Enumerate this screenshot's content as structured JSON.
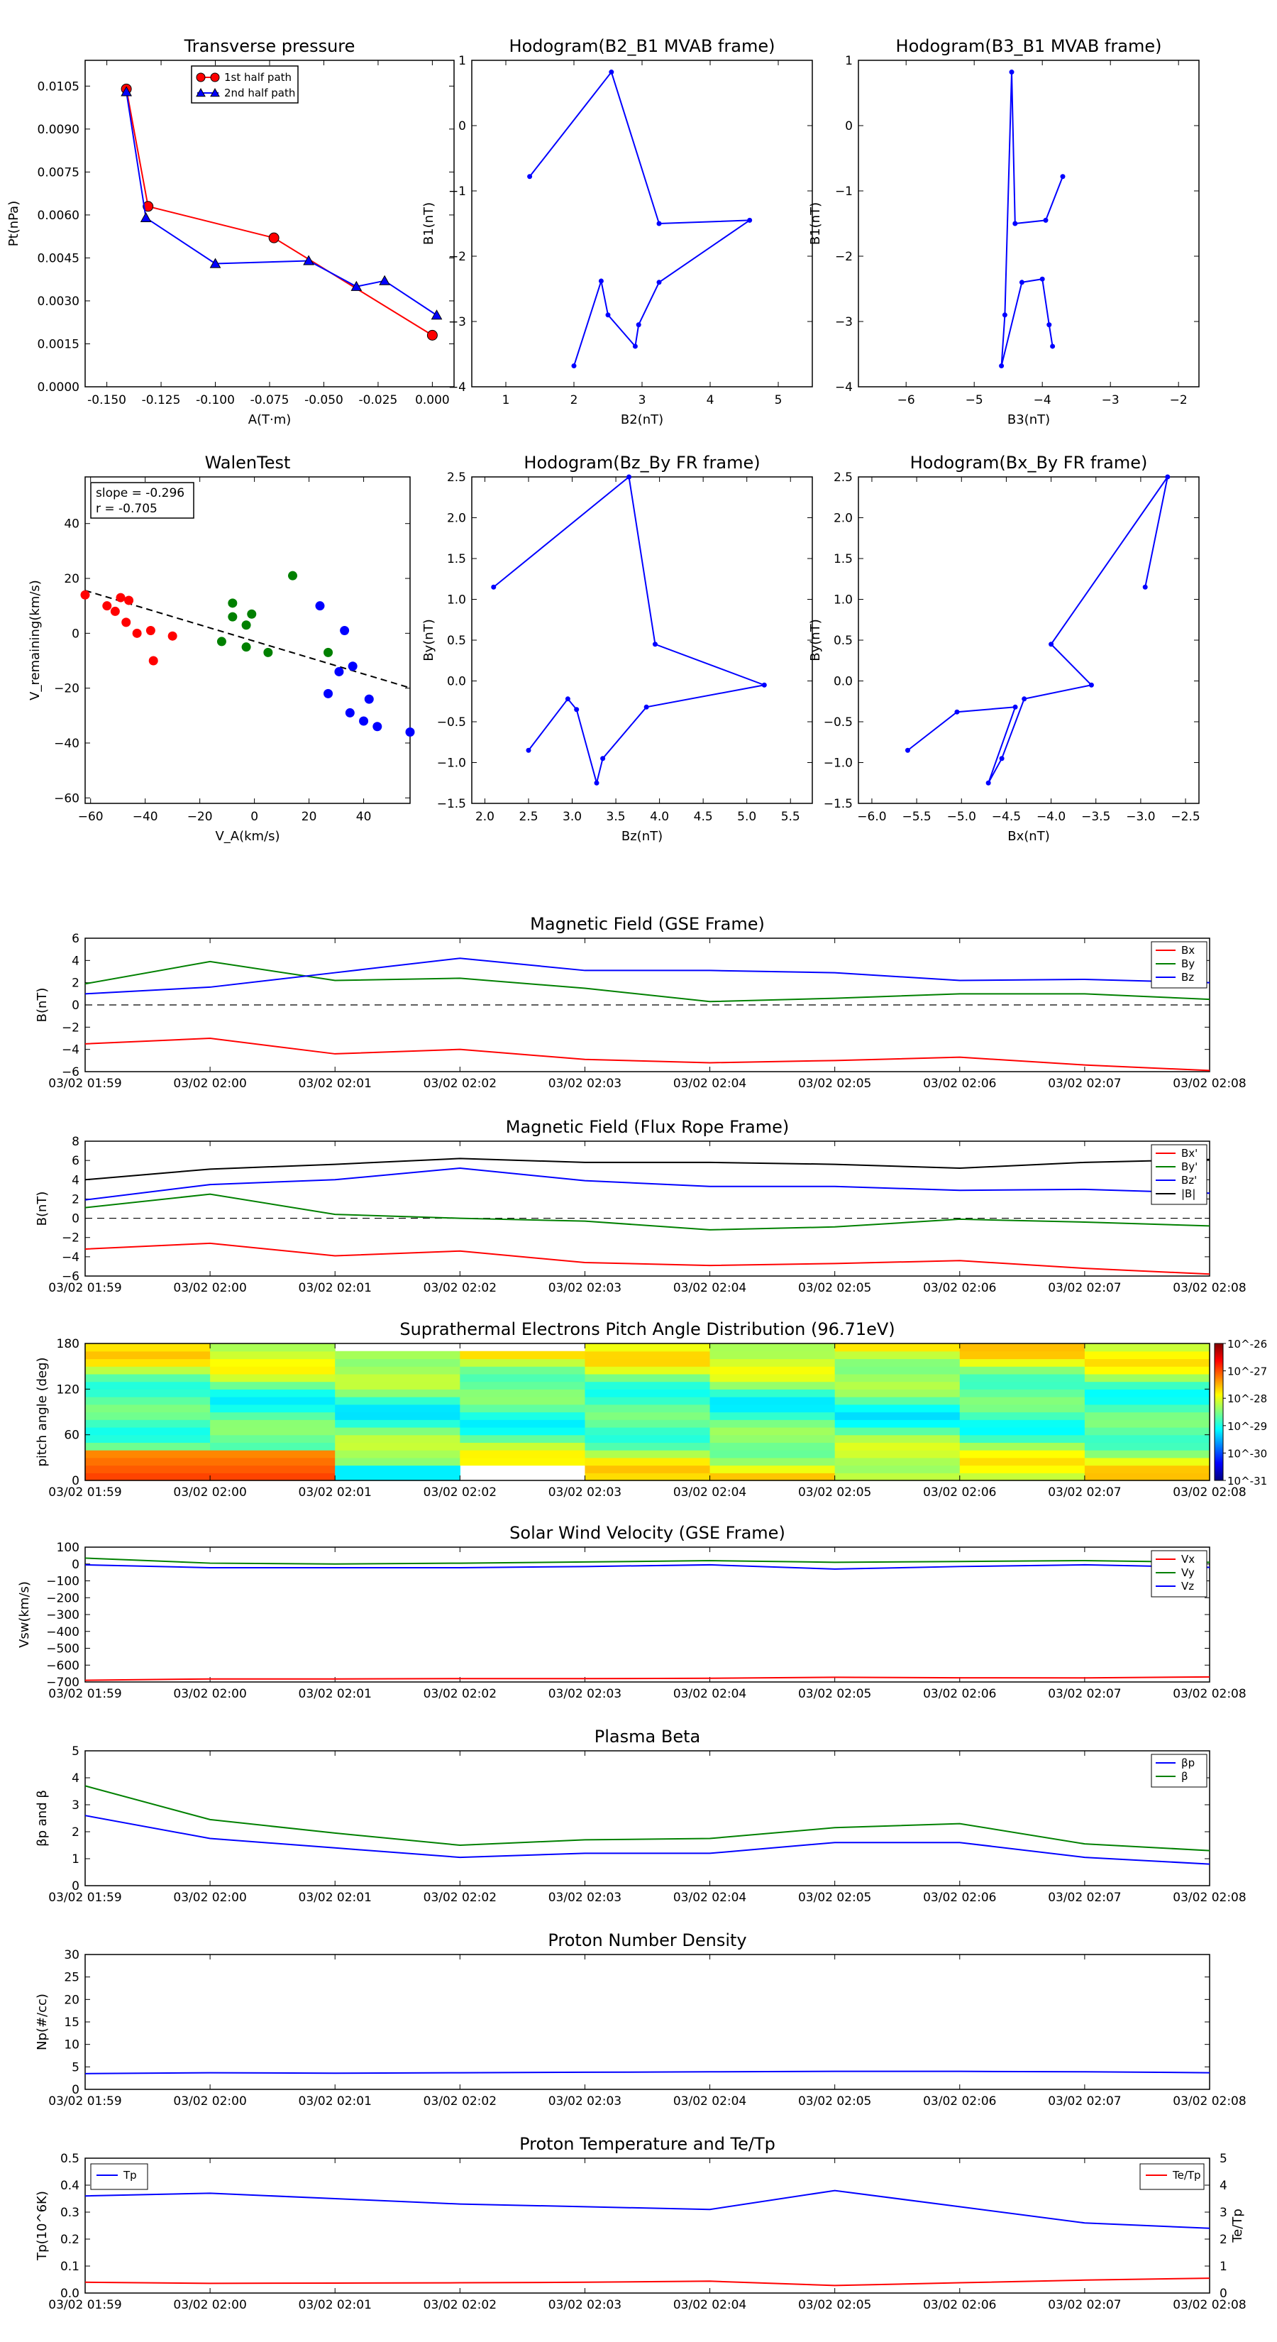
{
  "colors": {
    "blue": "#0000ff",
    "green": "#008000",
    "red": "#ff0000",
    "black": "#000000"
  },
  "chart_data": [
    {
      "id": "transverse-pressure",
      "type": "scatter",
      "title": "Transverse pressure",
      "xlabel": "A(T·m)",
      "ylabel": "Pt(nPa)",
      "xlim": [
        -0.16,
        0.01
      ],
      "ylim": [
        0.0,
        0.0114
      ],
      "xticks": [
        "-0.150",
        "-0.125",
        "-0.100",
        "-0.075",
        "-0.050",
        "-0.025",
        "0.000"
      ],
      "yticks": [
        "0.0000",
        "0.0015",
        "0.0030",
        "0.0045",
        "0.0060",
        "0.0075",
        "0.0090",
        "0.0105"
      ],
      "legend": "top-center",
      "series": [
        {
          "name": "1st half path",
          "color": "red",
          "marker": "circle",
          "x": [
            -0.141,
            -0.131,
            -0.073,
            0.0
          ],
          "y": [
            0.0104,
            0.0063,
            0.0052,
            0.0018
          ]
        },
        {
          "name": "2nd half path",
          "color": "blue",
          "marker": "triangle",
          "x": [
            -0.141,
            -0.132,
            -0.1,
            -0.057,
            -0.035,
            -0.022,
            0.002
          ],
          "y": [
            0.0103,
            0.0059,
            0.0043,
            0.0044,
            0.0035,
            0.0037,
            0.0025
          ]
        }
      ]
    },
    {
      "id": "hodogram-b2-b1",
      "type": "line",
      "title": "Hodogram(B2_B1 MVAB frame)",
      "xlabel": "B2(nT)",
      "ylabel": "B1(nT)",
      "xlim": [
        0.5,
        5.5
      ],
      "ylim": [
        -4,
        1
      ],
      "xticks": [
        "1",
        "2",
        "3",
        "4",
        "5"
      ],
      "yticks": [
        "1",
        "0",
        "−1",
        "−2",
        "−3",
        "−4"
      ],
      "series": [
        {
          "color": "blue",
          "x": [
            1.35,
            2.55,
            3.25,
            4.58,
            3.25,
            2.95,
            2.9,
            2.5,
            2.4,
            2.0
          ],
          "y": [
            -0.78,
            0.82,
            -1.5,
            -1.45,
            -2.4,
            -3.05,
            -3.38,
            -2.9,
            -2.38,
            -3.68
          ]
        }
      ]
    },
    {
      "id": "hodogram-b3-b1",
      "type": "line",
      "title": "Hodogram(B3_B1 MVAB frame)",
      "xlabel": "B3(nT)",
      "ylabel": "B1(nT)",
      "xlim": [
        -6.7,
        -1.7
      ],
      "ylim": [
        -4,
        1
      ],
      "xticks": [
        "−6",
        "−5",
        "−4",
        "−3",
        "−2"
      ],
      "yticks": [
        "1",
        "0",
        "−1",
        "−2",
        "−3",
        "−4"
      ],
      "series": [
        {
          "color": "blue",
          "x": [
            -3.7,
            -3.95,
            -4.4,
            -4.45,
            -4.55,
            -4.6,
            -4.3,
            -4.0,
            -3.9,
            -3.85
          ],
          "y": [
            -0.78,
            -1.45,
            -1.5,
            0.82,
            -2.9,
            -3.68,
            -2.4,
            -2.35,
            -3.05,
            -3.38
          ]
        }
      ]
    },
    {
      "id": "walen-test",
      "type": "scatter",
      "title": "WalenTest",
      "xlabel": "V_A(km/s)",
      "ylabel": "V_remaining(km/s)",
      "xlim": [
        -62,
        57
      ],
      "ylim": [
        -62,
        57
      ],
      "xticks": [
        "−60",
        "−40",
        "−20",
        "0",
        "20",
        "40"
      ],
      "yticks": [
        "40",
        "20",
        "0",
        "−20",
        "−40",
        "−60"
      ],
      "annotation": [
        "slope = -0.296",
        "r = -0.705"
      ],
      "fit": {
        "x": [
          -62,
          57
        ],
        "y": [
          15.6,
          -19.9
        ]
      },
      "series": [
        {
          "color": "red",
          "x": [
            -62,
            -54,
            -51,
            -49,
            -47,
            -46,
            -43,
            -38,
            -37,
            -30
          ],
          "y": [
            14,
            10,
            8,
            13,
            4,
            12,
            0,
            1,
            -10,
            -1
          ]
        },
        {
          "color": "green",
          "x": [
            -12,
            -8,
            -8,
            -3,
            -3,
            -1,
            5,
            14,
            27
          ],
          "y": [
            -3,
            11,
            6,
            3,
            -5,
            7,
            -7,
            21,
            -7
          ]
        },
        {
          "color": "blue",
          "x": [
            24,
            27,
            31,
            33,
            35,
            36,
            40,
            42,
            45,
            57
          ],
          "y": [
            10,
            -22,
            -14,
            1,
            -29,
            -12,
            -32,
            -24,
            -34,
            -36
          ]
        }
      ]
    },
    {
      "id": "hodogram-bz-by",
      "type": "line",
      "title": "Hodogram(Bz_By FR frame)",
      "xlabel": "Bz(nT)",
      "ylabel": "By(nT)",
      "xlim": [
        1.85,
        5.75
      ],
      "ylim": [
        -1.5,
        2.5
      ],
      "xticks": [
        "2.0",
        "2.5",
        "3.0",
        "3.5",
        "4.0",
        "4.5",
        "5.0",
        "5.5"
      ],
      "yticks": [
        "2.5",
        "2.0",
        "1.5",
        "1.0",
        "0.5",
        "0.0",
        "−0.5",
        "−1.0",
        "−1.5"
      ],
      "series": [
        {
          "color": "blue",
          "x": [
            2.1,
            3.65,
            3.95,
            5.2,
            3.85,
            3.35,
            3.28,
            3.05,
            2.95,
            2.5
          ],
          "y": [
            1.15,
            2.5,
            0.45,
            -0.05,
            -0.32,
            -0.95,
            -1.25,
            -0.35,
            -0.22,
            -0.85
          ]
        }
      ]
    },
    {
      "id": "hodogram-bx-by",
      "type": "line",
      "title": "Hodogram(Bx_By FR frame)",
      "xlabel": "Bx(nT)",
      "ylabel": "By(nT)",
      "xlim": [
        -6.15,
        -2.35
      ],
      "ylim": [
        -1.5,
        2.5
      ],
      "xticks": [
        "−6.0",
        "−5.5",
        "−5.0",
        "−4.5",
        "−4.0",
        "−3.5",
        "−3.0",
        "−2.5"
      ],
      "yticks": [
        "2.5",
        "2.0",
        "1.5",
        "1.0",
        "0.5",
        "0.0",
        "−0.5",
        "−1.0",
        "−1.5"
      ],
      "series": [
        {
          "color": "blue",
          "x": [
            -2.95,
            -2.7,
            -4.0,
            -3.55,
            -4.3,
            -4.55,
            -4.7,
            -4.4,
            -5.05,
            -5.6
          ],
          "y": [
            1.15,
            2.5,
            0.45,
            -0.05,
            -0.22,
            -0.95,
            -1.25,
            -0.32,
            -0.38,
            -0.85
          ]
        }
      ]
    },
    {
      "id": "magnetic-field-gse",
      "type": "line",
      "title": "Magnetic Field (GSE Frame)",
      "ylabel": "B(nT)",
      "ylim": [
        -6,
        6
      ],
      "yticks": [
        "6",
        "4",
        "2",
        "0",
        "−2",
        "−4",
        "−6"
      ],
      "zero_line": true,
      "legend": "top-right",
      "series": [
        {
          "name": "Bx",
          "color": "red",
          "y": [
            -3.5,
            -3.0,
            -4.4,
            -4.0,
            -4.9,
            -5.2,
            -5.0,
            -4.7,
            -5.4,
            -5.9
          ]
        },
        {
          "name": "By",
          "color": "green",
          "y": [
            1.9,
            3.9,
            2.2,
            2.4,
            1.5,
            0.3,
            0.6,
            1.0,
            1.0,
            0.5
          ]
        },
        {
          "name": "Bz",
          "color": "blue",
          "y": [
            1.0,
            1.6,
            2.9,
            4.2,
            3.1,
            3.1,
            2.9,
            2.2,
            2.3,
            2.0
          ]
        }
      ]
    },
    {
      "id": "magnetic-field-flux-rope",
      "type": "line",
      "title": "Magnetic Field (Flux Rope Frame)",
      "ylabel": "B(nT)",
      "ylim": [
        -6,
        8
      ],
      "yticks": [
        "8",
        "6",
        "4",
        "2",
        "0",
        "−2",
        "−4",
        "−6"
      ],
      "zero_line": true,
      "legend": "top-right",
      "series": [
        {
          "name": "Bx'",
          "color": "red",
          "y": [
            -3.2,
            -2.6,
            -3.9,
            -3.4,
            -4.6,
            -4.9,
            -4.7,
            -4.4,
            -5.2,
            -5.8
          ]
        },
        {
          "name": "By'",
          "color": "green",
          "y": [
            1.1,
            2.5,
            0.4,
            0.0,
            -0.3,
            -1.2,
            -0.9,
            -0.1,
            -0.4,
            -0.8
          ]
        },
        {
          "name": "Bz'",
          "color": "blue",
          "y": [
            1.9,
            3.5,
            4.0,
            5.2,
            3.9,
            3.3,
            3.3,
            2.9,
            3.0,
            2.6
          ]
        },
        {
          "name": "|B|",
          "color": "black",
          "y": [
            4.0,
            5.1,
            5.6,
            6.2,
            5.8,
            5.8,
            5.6,
            5.2,
            5.8,
            6.1
          ]
        }
      ]
    },
    {
      "id": "pitch-angle-distribution",
      "type": "heatmap",
      "title": "Suprathermal Electrons Pitch Angle Distribution (96.71eV)",
      "ylabel": "pitch angle (deg)",
      "ylim": [
        0,
        180
      ],
      "yticks": [
        "180",
        "120",
        "60",
        "0"
      ],
      "colorbar_ticks": [
        "10^-26",
        "10^-27",
        "10^-28",
        "10^-29",
        "10^-30",
        "10^-31"
      ]
    },
    {
      "id": "solar-wind-velocity",
      "type": "line",
      "title": "Solar Wind Velocity (GSE Frame)",
      "ylabel": "Vsw(km/s)",
      "ylim": [
        -700,
        100
      ],
      "yticks": [
        "100",
        "0",
        "−100",
        "−200",
        "−300",
        "−400",
        "−500",
        "−600",
        "−700"
      ],
      "legend": "top-right",
      "series": [
        {
          "name": "Vx",
          "color": "red",
          "y": [
            -690,
            -682,
            -682,
            -680,
            -680,
            -678,
            -672,
            -675,
            -676,
            -670
          ]
        },
        {
          "name": "Vy",
          "color": "green",
          "y": [
            35,
            5,
            0,
            5,
            12,
            20,
            10,
            15,
            20,
            10
          ]
        },
        {
          "name": "Vz",
          "color": "blue",
          "y": [
            -5,
            -22,
            -22,
            -22,
            -15,
            -5,
            -30,
            -15,
            -5,
            -20
          ]
        }
      ]
    },
    {
      "id": "plasma-beta",
      "type": "line",
      "title": "Plasma Beta",
      "ylabel": "βp and β",
      "ylim": [
        0,
        5
      ],
      "yticks": [
        "5",
        "4",
        "3",
        "2",
        "1",
        "0"
      ],
      "legend": "top-right",
      "series": [
        {
          "name": "βp",
          "color": "blue",
          "y": [
            2.6,
            1.75,
            1.4,
            1.05,
            1.2,
            1.2,
            1.6,
            1.6,
            1.05,
            0.8
          ]
        },
        {
          "name": "β",
          "color": "green",
          "y": [
            3.7,
            2.45,
            1.95,
            1.5,
            1.7,
            1.75,
            2.15,
            2.3,
            1.55,
            1.3
          ]
        }
      ]
    },
    {
      "id": "proton-number-density",
      "type": "line",
      "title": "Proton Number Density",
      "ylabel": "Np(#/cc)",
      "ylim": [
        0,
        30
      ],
      "yticks": [
        "30",
        "25",
        "20",
        "15",
        "10",
        "5",
        "0"
      ],
      "series": [
        {
          "color": "blue",
          "y": [
            3.5,
            3.7,
            3.6,
            3.7,
            3.8,
            3.9,
            4.0,
            4.0,
            3.9,
            3.7
          ]
        }
      ]
    },
    {
      "id": "proton-temperature",
      "type": "line",
      "title": "Proton Temperature and Te/Tp",
      "ylabel": "Tp(10^6K)",
      "ylabel_right": "Te/Tp",
      "ylim": [
        0,
        0.5
      ],
      "ylim_right": [
        0,
        5
      ],
      "yticks": [
        "0.5",
        "0.4",
        "0.3",
        "0.2",
        "0.1",
        "0.0"
      ],
      "yticks_right": [
        "5",
        "4",
        "3",
        "2",
        "1",
        "0"
      ],
      "legend": "top-left",
      "series": [
        {
          "name": "Tp",
          "color": "blue",
          "y": [
            0.36,
            0.37,
            0.35,
            0.33,
            0.32,
            0.31,
            0.38,
            0.32,
            0.26,
            0.24
          ]
        },
        {
          "name": "Te/Tp",
          "color": "red",
          "axis": "right",
          "y": [
            0.4,
            0.36,
            0.37,
            0.38,
            0.4,
            0.44,
            0.28,
            0.38,
            0.48,
            0.55
          ]
        }
      ]
    }
  ],
  "time_axis": {
    "labels": [
      "03/02 01:59",
      "03/02 02:00",
      "03/02 02:01",
      "03/02 02:02",
      "03/02 02:03",
      "03/02 02:04",
      "03/02 02:05",
      "03/02 02:06",
      "03/02 02:07",
      "03/02 02:08"
    ]
  }
}
